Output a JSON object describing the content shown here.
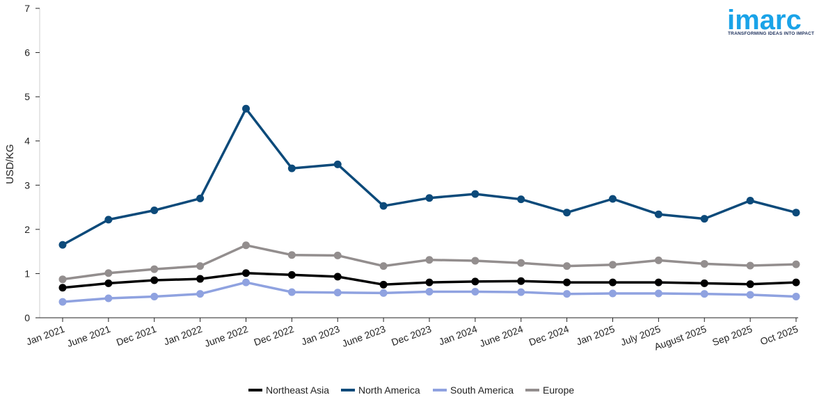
{
  "logo": {
    "name": "imarc",
    "tagline": "TRANSFORMING IDEAS INTO IMPACT",
    "color": "#1aa3e8"
  },
  "chart_data": {
    "type": "line",
    "ylabel": "USD/KG",
    "ylim": [
      0,
      7
    ],
    "yticks": [
      "0",
      "1",
      "2",
      "3",
      "4",
      "5",
      "6",
      "7"
    ],
    "grid": false,
    "legend_position": "bottom",
    "categories": [
      "Jan 2021",
      "June 2021",
      "Dec 2021",
      "Jan 2022",
      "June 2022",
      "Dec 2022",
      "Jan 2023",
      "June 2023",
      "Dec 2023",
      "Jan 2024",
      "June 2024",
      "Dec 2024",
      "Jan 2025",
      "July 2025",
      "August 2025",
      "Sep 2025",
      "Oct 2025"
    ],
    "series": [
      {
        "name": "Northeast Asia",
        "color": "#000000",
        "values": [
          0.68,
          0.78,
          0.85,
          0.88,
          1.01,
          0.97,
          0.93,
          0.75,
          0.8,
          0.82,
          0.83,
          0.8,
          0.8,
          0.8,
          0.78,
          0.76,
          0.8
        ]
      },
      {
        "name": "North America",
        "color": "#0c4a7a",
        "values": [
          1.65,
          2.22,
          2.43,
          2.7,
          4.73,
          3.38,
          3.47,
          2.53,
          2.71,
          2.8,
          2.68,
          2.38,
          2.69,
          2.34,
          2.24,
          2.65,
          2.38
        ]
      },
      {
        "name": "South America",
        "color": "#8fa2e0",
        "values": [
          0.36,
          0.44,
          0.48,
          0.54,
          0.8,
          0.58,
          0.57,
          0.56,
          0.59,
          0.59,
          0.58,
          0.54,
          0.55,
          0.55,
          0.54,
          0.52,
          0.48
        ]
      },
      {
        "name": "Europe",
        "color": "#938e8e",
        "values": [
          0.87,
          1.01,
          1.1,
          1.17,
          1.64,
          1.42,
          1.41,
          1.17,
          1.31,
          1.29,
          1.24,
          1.17,
          1.2,
          1.3,
          1.22,
          1.18,
          1.21
        ]
      }
    ]
  }
}
